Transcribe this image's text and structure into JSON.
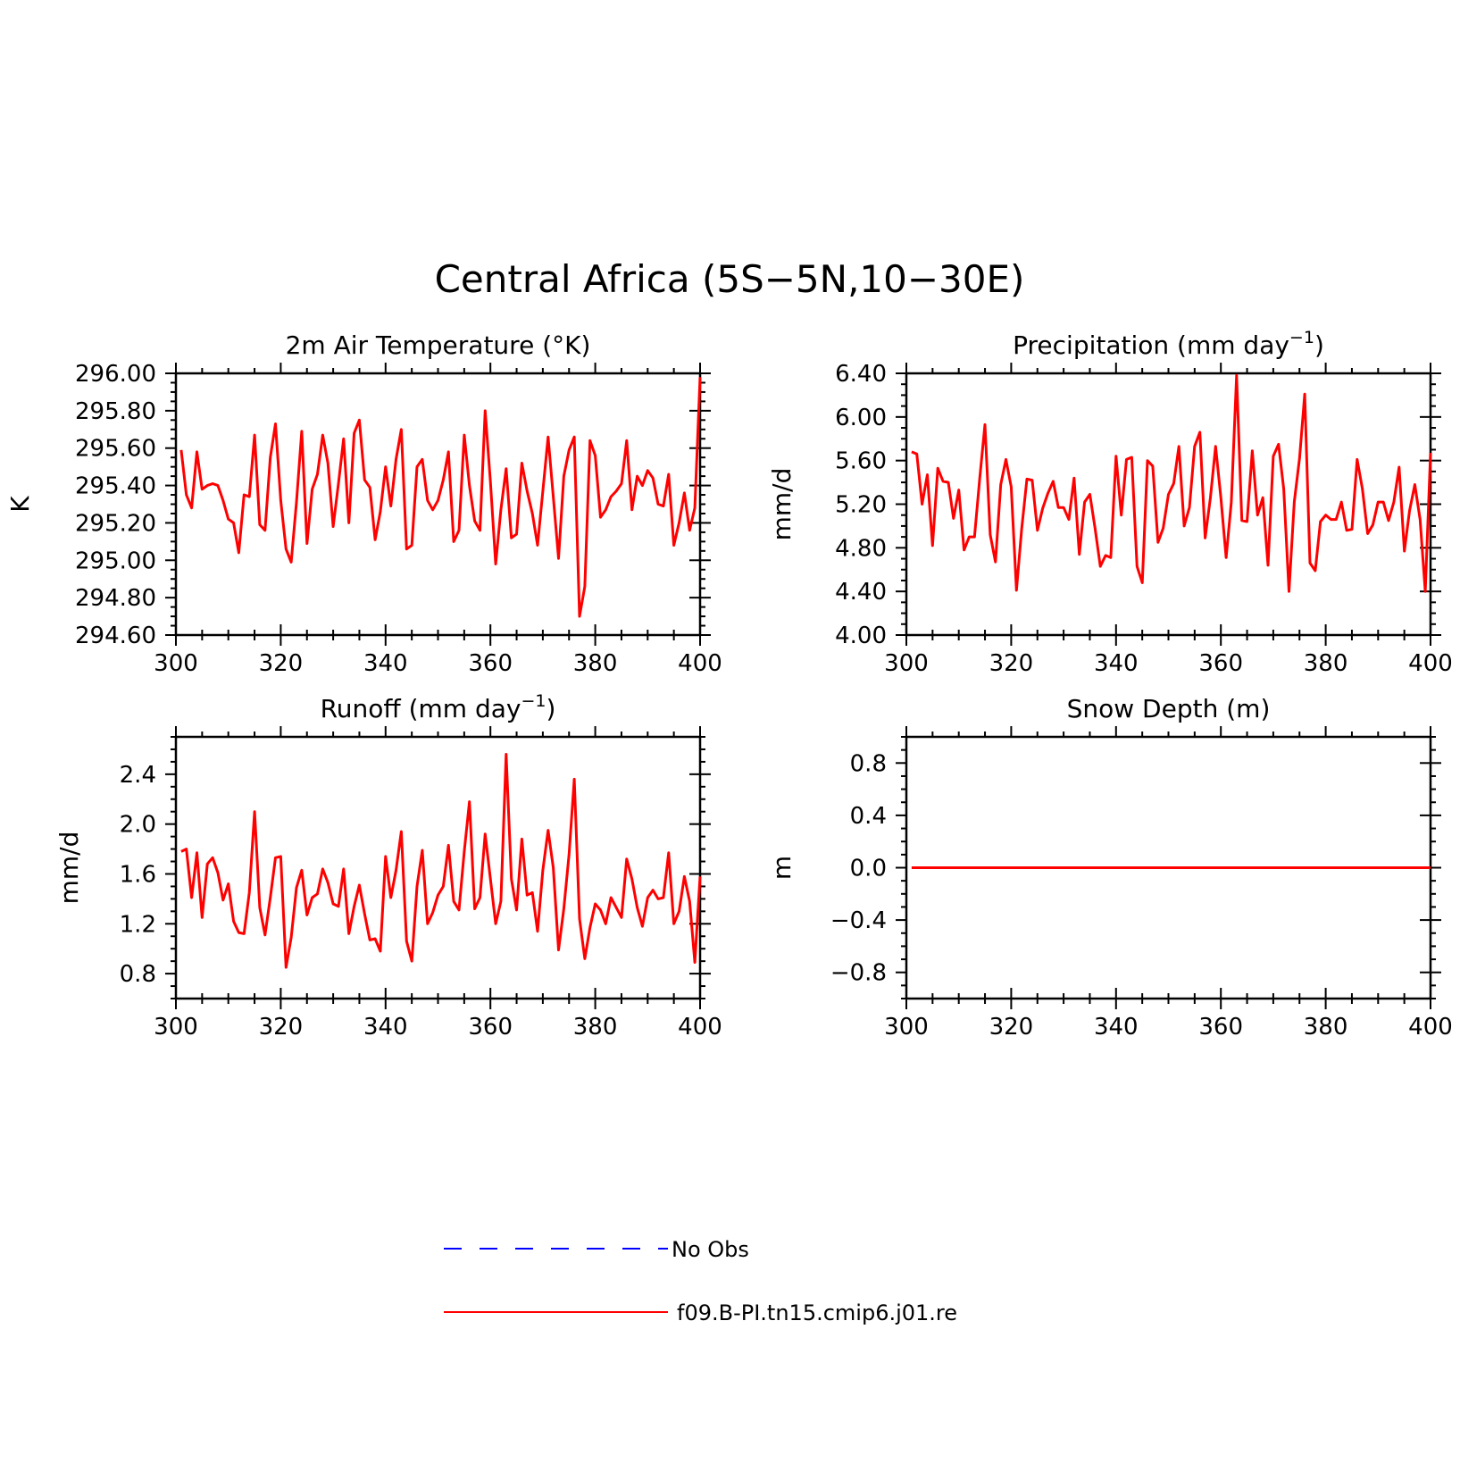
{
  "title": "Central Africa (5S-5N,10-30E)",
  "colors": {
    "model": "#ff0000",
    "obs": "#0000ff",
    "axis": "#000000"
  },
  "legend": {
    "placement": "bottom-center",
    "entries": [
      {
        "label": "No Obs",
        "style": "dashed",
        "color": "#0000ff"
      },
      {
        "label": "f09.B-PI.tn15.cmip6.j01.re",
        "style": "solid",
        "color": "#ff0000"
      }
    ]
  },
  "chart_data": [
    {
      "type": "line",
      "title": "2m Air Temperature (°K)",
      "xlabel": "",
      "ylabel": "K",
      "xlim": [
        300,
        400
      ],
      "ylim": [
        294.6,
        296.0
      ],
      "xticks": [
        "300",
        "320",
        "340",
        "360",
        "380",
        "400"
      ],
      "yticks": [
        "294.60",
        "294.80",
        "295.00",
        "295.20",
        "295.40",
        "295.60",
        "295.80",
        "296.00"
      ],
      "series": [
        {
          "name": "f09.B-PI.tn15.cmip6.j01.re",
          "x_start": 301,
          "x_step": 1,
          "values": [
            295.59,
            295.35,
            295.28,
            295.58,
            295.38,
            295.4,
            295.41,
            295.4,
            295.32,
            295.22,
            295.2,
            295.04,
            295.35,
            295.34,
            295.67,
            295.19,
            295.16,
            295.55,
            295.73,
            295.32,
            295.06,
            294.99,
            295.31,
            295.69,
            295.09,
            295.38,
            295.46,
            295.67,
            295.52,
            295.18,
            295.41,
            295.65,
            295.2,
            295.68,
            295.75,
            295.43,
            295.39,
            295.11,
            295.26,
            295.5,
            295.29,
            295.54,
            295.7,
            295.06,
            295.08,
            295.5,
            295.54,
            295.32,
            295.27,
            295.32,
            295.43,
            295.58,
            295.1,
            295.16,
            295.67,
            295.4,
            295.21,
            295.16,
            295.8,
            295.42,
            294.98,
            295.27,
            295.49,
            295.12,
            295.14,
            295.52,
            295.37,
            295.25,
            295.08,
            295.37,
            295.66,
            295.34,
            295.01,
            295.45,
            295.59,
            295.66,
            294.7,
            294.86,
            295.64,
            295.56,
            295.23,
            295.27,
            295.34,
            295.37,
            295.41,
            295.64,
            295.27,
            295.45,
            295.4,
            295.48,
            295.44,
            295.3,
            295.29,
            295.46,
            295.08,
            295.2,
            295.36,
            295.16,
            295.28,
            295.98
          ]
        }
      ]
    },
    {
      "type": "line",
      "title": "Precipitation (mm day-1)",
      "xlabel": "",
      "ylabel": "mm/d",
      "xlim": [
        300,
        400
      ],
      "ylim": [
        4.0,
        6.4
      ],
      "xticks": [
        "300",
        "320",
        "340",
        "360",
        "380",
        "400"
      ],
      "yticks": [
        "4.00",
        "4.40",
        "4.80",
        "5.20",
        "5.60",
        "6.00",
        "6.40"
      ],
      "series": [
        {
          "name": "f09.B-PI.tn15.cmip6.j01.re",
          "x_start": 301,
          "x_step": 1,
          "values": [
            5.68,
            5.66,
            5.2,
            5.47,
            4.82,
            5.53,
            5.41,
            5.4,
            5.07,
            5.33,
            4.78,
            4.9,
            4.9,
            5.44,
            5.93,
            4.92,
            4.67,
            5.38,
            5.61,
            5.36,
            4.41,
            4.97,
            5.43,
            5.42,
            4.96,
            5.16,
            5.3,
            5.41,
            5.17,
            5.17,
            5.06,
            5.44,
            4.74,
            5.22,
            5.29,
            4.98,
            4.63,
            4.73,
            4.71,
            5.64,
            5.1,
            5.61,
            5.63,
            4.63,
            4.48,
            5.6,
            5.55,
            4.85,
            4.98,
            5.29,
            5.39,
            5.73,
            5.0,
            5.17,
            5.73,
            5.86,
            4.89,
            5.26,
            5.73,
            5.26,
            4.71,
            5.22,
            6.38,
            5.05,
            5.04,
            5.69,
            5.1,
            5.26,
            4.64,
            5.64,
            5.75,
            5.34,
            4.4,
            5.22,
            5.62,
            6.21,
            4.66,
            4.59,
            5.04,
            5.1,
            5.06,
            5.06,
            5.22,
            4.96,
            4.97,
            5.61,
            5.34,
            4.93,
            5.01,
            5.22,
            5.22,
            5.05,
            5.22,
            5.54,
            4.77,
            5.14,
            5.38,
            5.06,
            4.4,
            5.67
          ]
        }
      ]
    },
    {
      "type": "line",
      "title": "Runoff (mm day-1)",
      "xlabel": "",
      "ylabel": "mm/d",
      "xlim": [
        300,
        400
      ],
      "ylim": [
        0.6,
        2.7
      ],
      "xticks": [
        "300",
        "320",
        "340",
        "360",
        "380",
        "400"
      ],
      "yticks": [
        "0.8",
        "1.2",
        "1.6",
        "2.0",
        "2.4"
      ],
      "series": [
        {
          "name": "f09.B-PI.tn15.cmip6.j01.re",
          "x_start": 301,
          "x_step": 1,
          "values": [
            1.78,
            1.8,
            1.41,
            1.77,
            1.25,
            1.68,
            1.73,
            1.61,
            1.39,
            1.52,
            1.22,
            1.13,
            1.12,
            1.45,
            2.1,
            1.33,
            1.11,
            1.41,
            1.73,
            1.74,
            0.85,
            1.09,
            1.49,
            1.63,
            1.27,
            1.41,
            1.44,
            1.64,
            1.53,
            1.36,
            1.34,
            1.64,
            1.12,
            1.34,
            1.51,
            1.28,
            1.07,
            1.08,
            0.98,
            1.74,
            1.41,
            1.63,
            1.94,
            1.06,
            0.9,
            1.5,
            1.79,
            1.2,
            1.29,
            1.43,
            1.5,
            1.83,
            1.38,
            1.31,
            1.78,
            2.18,
            1.32,
            1.41,
            1.92,
            1.56,
            1.2,
            1.38,
            2.56,
            1.56,
            1.31,
            1.88,
            1.43,
            1.45,
            1.14,
            1.63,
            1.95,
            1.65,
            0.99,
            1.32,
            1.76,
            2.36,
            1.24,
            0.92,
            1.17,
            1.36,
            1.31,
            1.2,
            1.41,
            1.33,
            1.25,
            1.72,
            1.56,
            1.33,
            1.18,
            1.41,
            1.47,
            1.4,
            1.41,
            1.77,
            1.2,
            1.3,
            1.58,
            1.38,
            0.89,
            1.58
          ]
        }
      ]
    },
    {
      "type": "line",
      "title": "Snow Depth (m)",
      "xlabel": "",
      "ylabel": "m",
      "xlim": [
        300,
        400
      ],
      "ylim": [
        -1.0,
        1.0
      ],
      "xticks": [
        "300",
        "320",
        "340",
        "360",
        "380",
        "400"
      ],
      "yticks": [
        "-0.8",
        "-0.4",
        "0.0",
        "0.4",
        "0.8"
      ],
      "series": [
        {
          "name": "f09.B-PI.tn15.cmip6.j01.re",
          "x_start": 301,
          "x_step": 1,
          "values": [
            0,
            0,
            0,
            0,
            0,
            0,
            0,
            0,
            0,
            0,
            0,
            0,
            0,
            0,
            0,
            0,
            0,
            0,
            0,
            0,
            0,
            0,
            0,
            0,
            0,
            0,
            0,
            0,
            0,
            0,
            0,
            0,
            0,
            0,
            0,
            0,
            0,
            0,
            0,
            0,
            0,
            0,
            0,
            0,
            0,
            0,
            0,
            0,
            0,
            0,
            0,
            0,
            0,
            0,
            0,
            0,
            0,
            0,
            0,
            0,
            0,
            0,
            0,
            0,
            0,
            0,
            0,
            0,
            0,
            0,
            0,
            0,
            0,
            0,
            0,
            0,
            0,
            0,
            0,
            0,
            0,
            0,
            0,
            0,
            0,
            0,
            0,
            0,
            0,
            0,
            0,
            0,
            0,
            0,
            0,
            0,
            0,
            0,
            0,
            0
          ]
        }
      ]
    }
  ]
}
